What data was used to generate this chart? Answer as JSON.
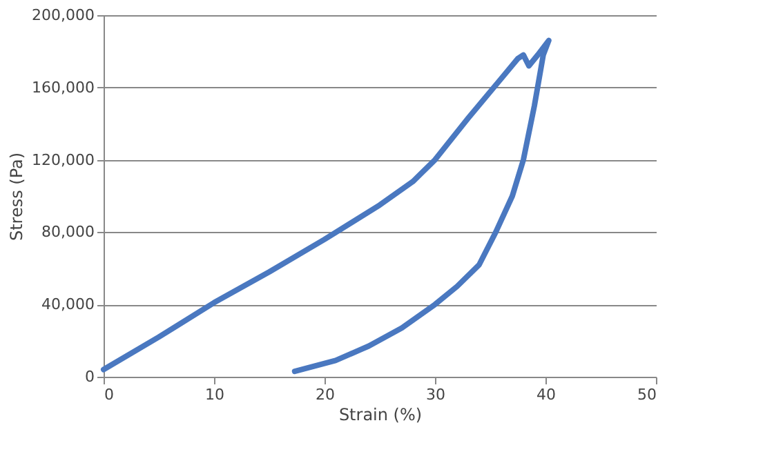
{
  "chart_data": {
    "type": "line",
    "xlabel": "Strain (%)",
    "ylabel": "Stress (Pa)",
    "xlim": [
      0,
      50
    ],
    "xticks": [
      0,
      10,
      20,
      30,
      40,
      50
    ],
    "ylim": [
      0,
      200000
    ],
    "yticks": [
      {
        "value": 0,
        "label": "0"
      },
      {
        "value": 40000,
        "label": "40,000"
      },
      {
        "value": 80000,
        "label": "80,000"
      },
      {
        "value": 120000,
        "label": "120,000"
      },
      {
        "value": 160000,
        "label": "160,000"
      },
      {
        "value": 200000,
        "label": "200,000"
      }
    ],
    "grid": "y",
    "marker": "none",
    "line_style": "solid",
    "series": [
      {
        "color": "#4a78c0",
        "x": [
          0,
          5,
          10,
          15,
          20,
          25,
          28,
          30,
          33,
          36,
          37.5,
          38,
          38.5,
          39.3,
          40.3,
          39.8,
          39,
          38,
          37,
          35.5,
          34,
          32,
          30,
          27,
          24,
          21,
          17.3
        ],
        "values": [
          4000,
          22000,
          41000,
          58000,
          76000,
          95000,
          108000,
          120000,
          143000,
          165000,
          176000,
          178000,
          172000,
          178000,
          186000,
          178000,
          150000,
          120000,
          100000,
          80000,
          62000,
          50000,
          40000,
          27000,
          17000,
          9000,
          3000
        ]
      }
    ]
  }
}
